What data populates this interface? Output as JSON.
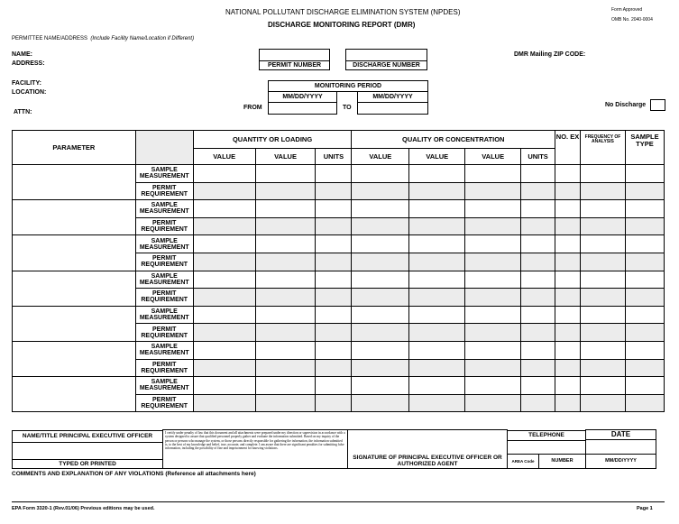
{
  "header": {
    "title": "NATIONAL POLLUTANT DISCHARGE ELIMINATION SYSTEM (NPDES)",
    "subtitle": "DISCHARGE MONITORING REPORT (DMR)",
    "form_approved": "Form Approved",
    "omb": "OMB No. 2040-0004"
  },
  "permittee": {
    "heading": "PERMITTEE NAME/ADDRESS",
    "note": "(Include Facility Name/Location if Different)",
    "name": "NAME:",
    "address": "ADDRESS:",
    "facility": "FACILITY:",
    "location": "LOCATION:",
    "attn": "ATTN:"
  },
  "permit_number": "PERMIT NUMBER",
  "discharge_number": "DISCHARGE NUMBER",
  "zip_label": "DMR Mailing ZIP CODE:",
  "monitoring": {
    "title": "MONITORING PERIOD",
    "from_format": "MM/DD/YYYY",
    "to_format": "MM/DD/YYYY",
    "from": "FROM",
    "to": "TO"
  },
  "no_discharge": "No Discharge",
  "table": {
    "parameter": "PARAMETER",
    "quantity": "QUANTITY OR LOADING",
    "quality": "QUALITY OR CONCENTRATION",
    "value": "VALUE",
    "units": "UNITS",
    "no_ex": "NO. EX",
    "frequency": "FREQUENCY OF ANALYSIS",
    "sample_type": "SAMPLE TYPE",
    "sample_measurement": "SAMPLE MEASUREMENT",
    "permit_requirement": "PERMIT REQUIREMENT",
    "parameter_count": 7
  },
  "footer_block": {
    "officer": "NAME/TITLE PRINCIPAL EXECUTIVE OFFICER",
    "typed": "TYPED OR PRINTED",
    "certification": "I certify under penalty of law that this document and all attachments were prepared under my direction or supervision in accordance with a system designed to assure that qualified personnel properly gather and evaluate the information submitted. Based on my inquiry of the person or persons who manage the system, or those persons directly responsible for gathering the information, the information submitted is, to the best of my knowledge and belief, true, accurate, and complete. I am aware that there are significant penalties for submitting false information, including the possibility of fine and imprisonment for knowing violations.",
    "signature": "SIGNATURE OF PRINCIPAL EXECUTIVE OFFICER OR AUTHORIZED AGENT",
    "telephone": "TELEPHONE",
    "date": "DATE",
    "area_code": "AREA Code",
    "number": "NUMBER",
    "date_format": "MM/DD/YYYY"
  },
  "comments": "COMMENTS AND EXPLANATION OF ANY VIOLATIONS (Reference all attachments here)",
  "form_id": "EPA Form 3320-1 (Rev.01/06) Previous editions may be used.",
  "page": "Page 1"
}
